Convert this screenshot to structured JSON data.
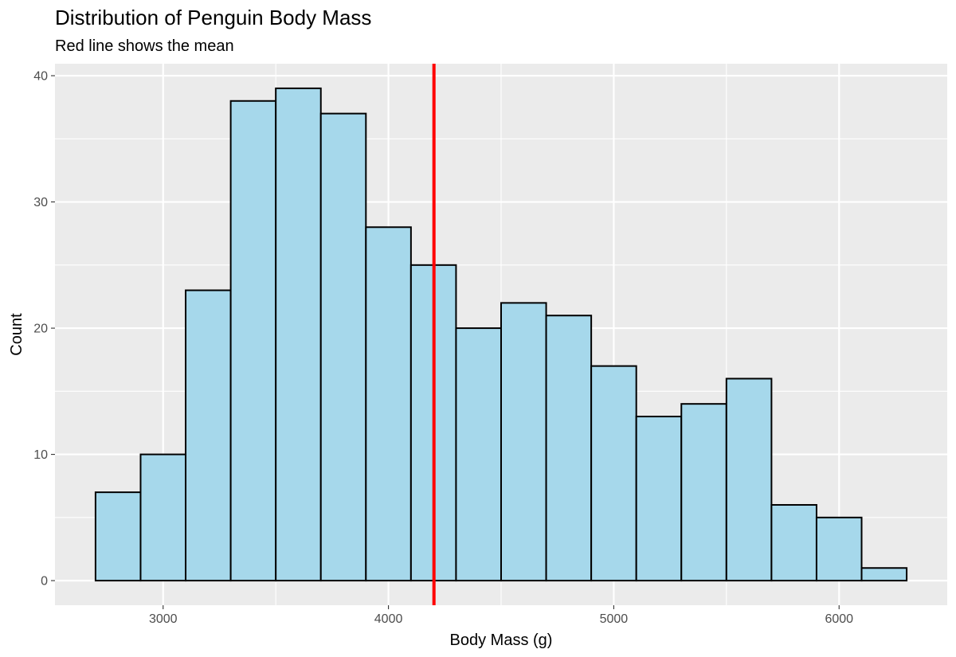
{
  "chart_data": {
    "type": "bar",
    "subtype": "histogram",
    "title": "Distribution of Penguin Body Mass",
    "subtitle": "Red line shows the mean",
    "xlabel": "Body Mass (g)",
    "ylabel": "Count",
    "bin_width": 200,
    "bins": [
      {
        "start": 2700,
        "end": 2900,
        "count": 7
      },
      {
        "start": 2900,
        "end": 3100,
        "count": 10
      },
      {
        "start": 3100,
        "end": 3300,
        "count": 23
      },
      {
        "start": 3300,
        "end": 3500,
        "count": 38
      },
      {
        "start": 3500,
        "end": 3700,
        "count": 39
      },
      {
        "start": 3700,
        "end": 3900,
        "count": 37
      },
      {
        "start": 3900,
        "end": 4100,
        "count": 28
      },
      {
        "start": 4100,
        "end": 4300,
        "count": 25
      },
      {
        "start": 4300,
        "end": 4500,
        "count": 20
      },
      {
        "start": 4500,
        "end": 4700,
        "count": 22
      },
      {
        "start": 4700,
        "end": 4900,
        "count": 21
      },
      {
        "start": 4900,
        "end": 5100,
        "count": 17
      },
      {
        "start": 5100,
        "end": 5300,
        "count": 13
      },
      {
        "start": 5300,
        "end": 5500,
        "count": 14
      },
      {
        "start": 5500,
        "end": 5700,
        "count": 16
      },
      {
        "start": 5700,
        "end": 5900,
        "count": 6
      },
      {
        "start": 5900,
        "end": 6100,
        "count": 5
      },
      {
        "start": 6100,
        "end": 6300,
        "count": 1
      }
    ],
    "mean": 4202,
    "xlim": [
      2520,
      6480
    ],
    "ylim": [
      -1.95,
      40.95
    ],
    "x_ticks": [
      3000,
      4000,
      5000,
      6000
    ],
    "x_minor_ticks": [
      2500,
      3500,
      4500,
      5500
    ],
    "y_ticks": [
      0,
      10,
      20,
      30,
      40
    ],
    "y_minor_ticks": [
      5,
      15,
      25,
      35
    ],
    "grid": true,
    "legend": "none",
    "colors": {
      "bar_fill": "#a6d8eb",
      "bar_outline": "#000000",
      "mean_line": "#ff0000",
      "panel_background": "#ebebeb",
      "grid": "#ffffff"
    }
  }
}
